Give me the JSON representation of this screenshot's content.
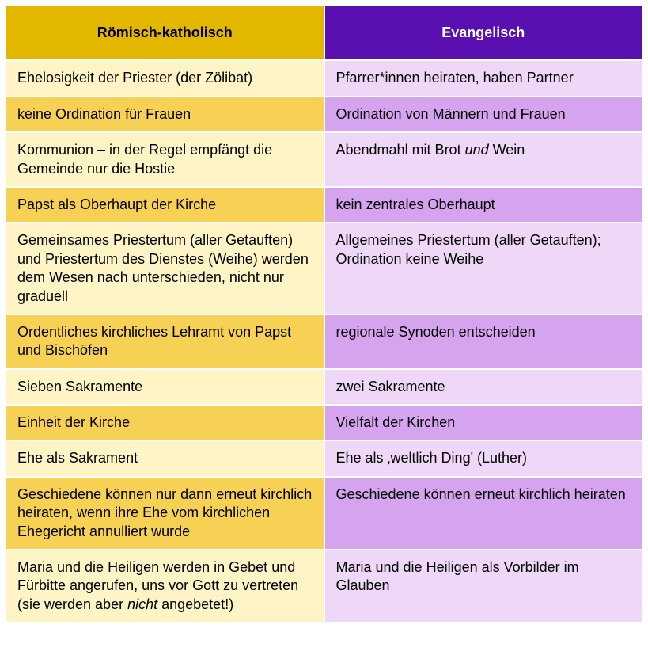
{
  "table": {
    "type": "table",
    "columns": [
      {
        "label": "Römisch-katholisch",
        "header_bg": "#e3b600",
        "header_fg": "#000000"
      },
      {
        "label": "Evangelisch",
        "header_bg": "#5a0fb0",
        "header_fg": "#ffffff"
      }
    ],
    "colors": {
      "left_light": "#fff4c6",
      "left_dark": "#f6d153",
      "right_light": "#efd7f7",
      "right_dark": "#d6a3ef",
      "border": "#ffffff"
    },
    "font": {
      "family": "Arial, Helvetica, sans-serif",
      "body_size_pt": 14,
      "header_size_pt": 14,
      "header_weight": "bold"
    },
    "rows": [
      {
        "left": "Ehelosigkeit der Priester   (der Zölibat)",
        "right": "Pfarrer*innen heiraten, haben Partner",
        "shade": "light"
      },
      {
        "left": "keine Ordination für Frauen",
        "right": "Ordination von Männern und Frauen",
        "shade": "dark"
      },
      {
        "left": "Kommunion – in der Regel empfängt die Gemeinde nur die Hostie",
        "right_html": "Abendmahl mit Brot <em class=\"it\">und</em> Wein",
        "right": "Abendmahl mit Brot und Wein",
        "shade": "light"
      },
      {
        "left": "Papst als Oberhaupt der Kirche",
        "right": "kein zentrales Oberhaupt",
        "shade": "dark"
      },
      {
        "left": "Gemeinsames Priestertum (aller Getauften) und Priestertum des Dienstes (Weihe) werden dem Wesen nach unterschieden, nicht nur graduell",
        "right": "Allgemeines Priestertum (aller Getauften); Ordination keine Weihe",
        "shade": "light"
      },
      {
        "left": "Ordentliches kirchliches Lehramt von Papst und Bischöfen",
        "right": "regionale Synoden entscheiden",
        "shade": "dark"
      },
      {
        "left": "Sieben Sakramente",
        "right": "zwei Sakramente",
        "shade": "light"
      },
      {
        "left": "Einheit der Kirche",
        "right": "Vielfalt der Kirchen",
        "shade": "dark"
      },
      {
        "left": "Ehe als Sakrament",
        "right": "Ehe als ‚weltlich Ding' (Luther)",
        "shade": "light"
      },
      {
        "left": "Geschiedene können nur dann erneut kirchlich heiraten, wenn ihre Ehe vom kirchlichen Ehegericht annulliert wurde",
        "right": "Geschiedene können erneut kirchlich heiraten",
        "shade": "dark"
      },
      {
        "left_html": "Maria und die Heiligen werden in Gebet und Fürbitte angerufen, uns vor Gott zu vertreten (sie werden aber <em class=\"it\">nicht</em> angebetet!)",
        "left": "Maria und die Heiligen werden in Gebet und Fürbitte angerufen, uns vor Gott zu vertreten (sie werden aber nicht angebetet!)",
        "right": "Maria und die Heiligen als Vorbilder im Glauben",
        "shade": "light"
      }
    ]
  }
}
